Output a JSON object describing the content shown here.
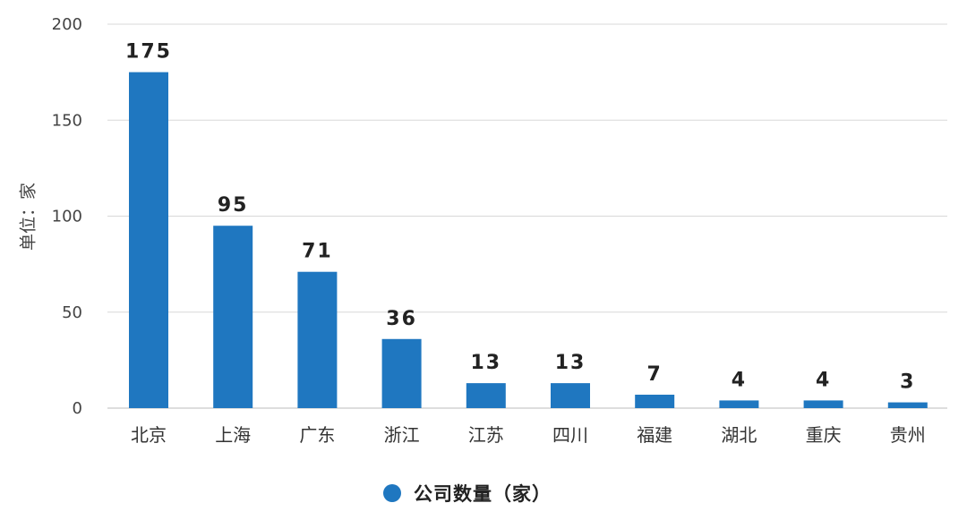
{
  "chart_data": {
    "type": "bar",
    "categories": [
      "北京",
      "上海",
      "广东",
      "浙江",
      "江苏",
      "四川",
      "福建",
      "湖北",
      "重庆",
      "贵州"
    ],
    "series": [
      {
        "name": "公司数量（家）",
        "values": [
          175,
          95,
          71,
          36,
          13,
          13,
          7,
          4,
          4,
          3
        ]
      }
    ],
    "data_labels": [
      "175",
      "95",
      "71",
      "36",
      "13",
      "13",
      "7",
      "4",
      "4",
      "3"
    ],
    "title": "",
    "xlabel": "",
    "ylabel": "单位：家",
    "ylim": [
      0,
      200
    ],
    "yticks": [
      0,
      50,
      100,
      150,
      200
    ],
    "ytick_labels": [
      "0",
      "50",
      "100",
      "150",
      "200"
    ],
    "grid": true,
    "legend_position": "bottom-center",
    "bar_color": "#1f77c0",
    "grid_color": "#d8d8d8"
  },
  "legend": {
    "label": "公司数量（家）"
  }
}
